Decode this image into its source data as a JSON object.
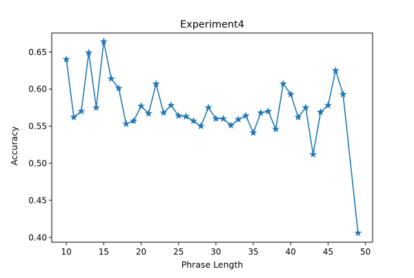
{
  "chart_data": {
    "type": "line",
    "title": "Experiment4",
    "xlabel": "Phrase Length",
    "ylabel": "Accuracy",
    "xlim": [
      8.05,
      50.95
    ],
    "ylim": [
      0.3935,
      0.6755
    ],
    "xticks": [
      10,
      15,
      20,
      25,
      30,
      35,
      40,
      45,
      50
    ],
    "yticks": [
      0.4,
      0.45,
      0.5,
      0.55,
      0.6,
      0.65
    ],
    "xtick_labels": [
      "10",
      "15",
      "20",
      "25",
      "30",
      "35",
      "40",
      "45",
      "50"
    ],
    "ytick_labels": [
      "0.40",
      "0.45",
      "0.50",
      "0.55",
      "0.60",
      "0.65"
    ],
    "grid": false,
    "marker": "star",
    "color": "#1f77b4",
    "series": [
      {
        "x": [
          10,
          11,
          12,
          13,
          14,
          15,
          16,
          17,
          18,
          19,
          20,
          21,
          22,
          23,
          24,
          25,
          26,
          27,
          28,
          29,
          30,
          31,
          32,
          33,
          34,
          35,
          36,
          37,
          38,
          39,
          40,
          41,
          42,
          43,
          44,
          45,
          46,
          47,
          49
        ],
        "y": [
          0.64,
          0.562,
          0.57,
          0.649,
          0.575,
          0.664,
          0.614,
          0.601,
          0.553,
          0.557,
          0.577,
          0.567,
          0.607,
          0.568,
          0.578,
          0.564,
          0.563,
          0.557,
          0.55,
          0.575,
          0.56,
          0.56,
          0.551,
          0.559,
          0.564,
          0.541,
          0.568,
          0.57,
          0.546,
          0.607,
          0.593,
          0.562,
          0.575,
          0.512,
          0.569,
          0.578,
          0.625,
          0.593,
          0.406
        ]
      }
    ]
  }
}
